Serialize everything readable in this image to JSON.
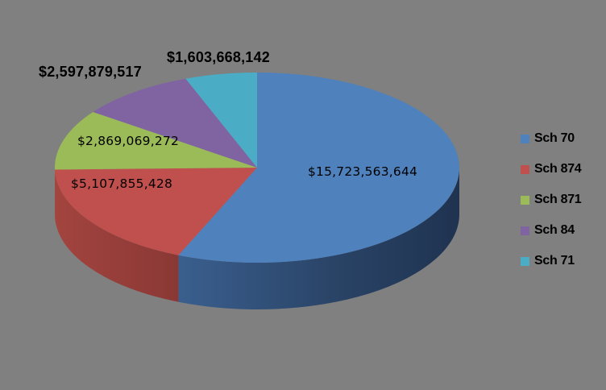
{
  "chart_data": {
    "type": "pie",
    "variant": "3d-pie",
    "title": "",
    "categories": [
      "Sch 70",
      "Sch 874",
      "Sch 871",
      "Sch 84",
      "Sch 71"
    ],
    "values": [
      15723563644,
      5107855428,
      2869069272,
      2597879517,
      1603668142
    ],
    "labels": [
      "$15,723,563,644",
      "$5,107,855,428",
      "$2,869,069,272",
      "$2,597,879,517",
      "$1,603,668,142"
    ],
    "colors": [
      "#4F81BD",
      "#C0504D",
      "#9BBB59",
      "#8064A2",
      "#4BACC6"
    ],
    "legend_position": "right",
    "start_angle": "12 o'clock, clockwise"
  },
  "legend": {
    "items": [
      {
        "label": "Sch 70",
        "color": "#4F81BD"
      },
      {
        "label": "Sch 874",
        "color": "#C0504D"
      },
      {
        "label": "Sch 871",
        "color": "#9BBB59"
      },
      {
        "label": "Sch 84",
        "color": "#8064A2"
      },
      {
        "label": "Sch 71",
        "color": "#4BACC6"
      }
    ]
  },
  "data_labels": {
    "sch70": "$15,723,563,644",
    "sch874": "$5,107,855,428",
    "sch871": "$2,869,069,272",
    "sch84": "$2,597,879,517",
    "sch71": "$1,603,668,142"
  },
  "background": "#808080"
}
